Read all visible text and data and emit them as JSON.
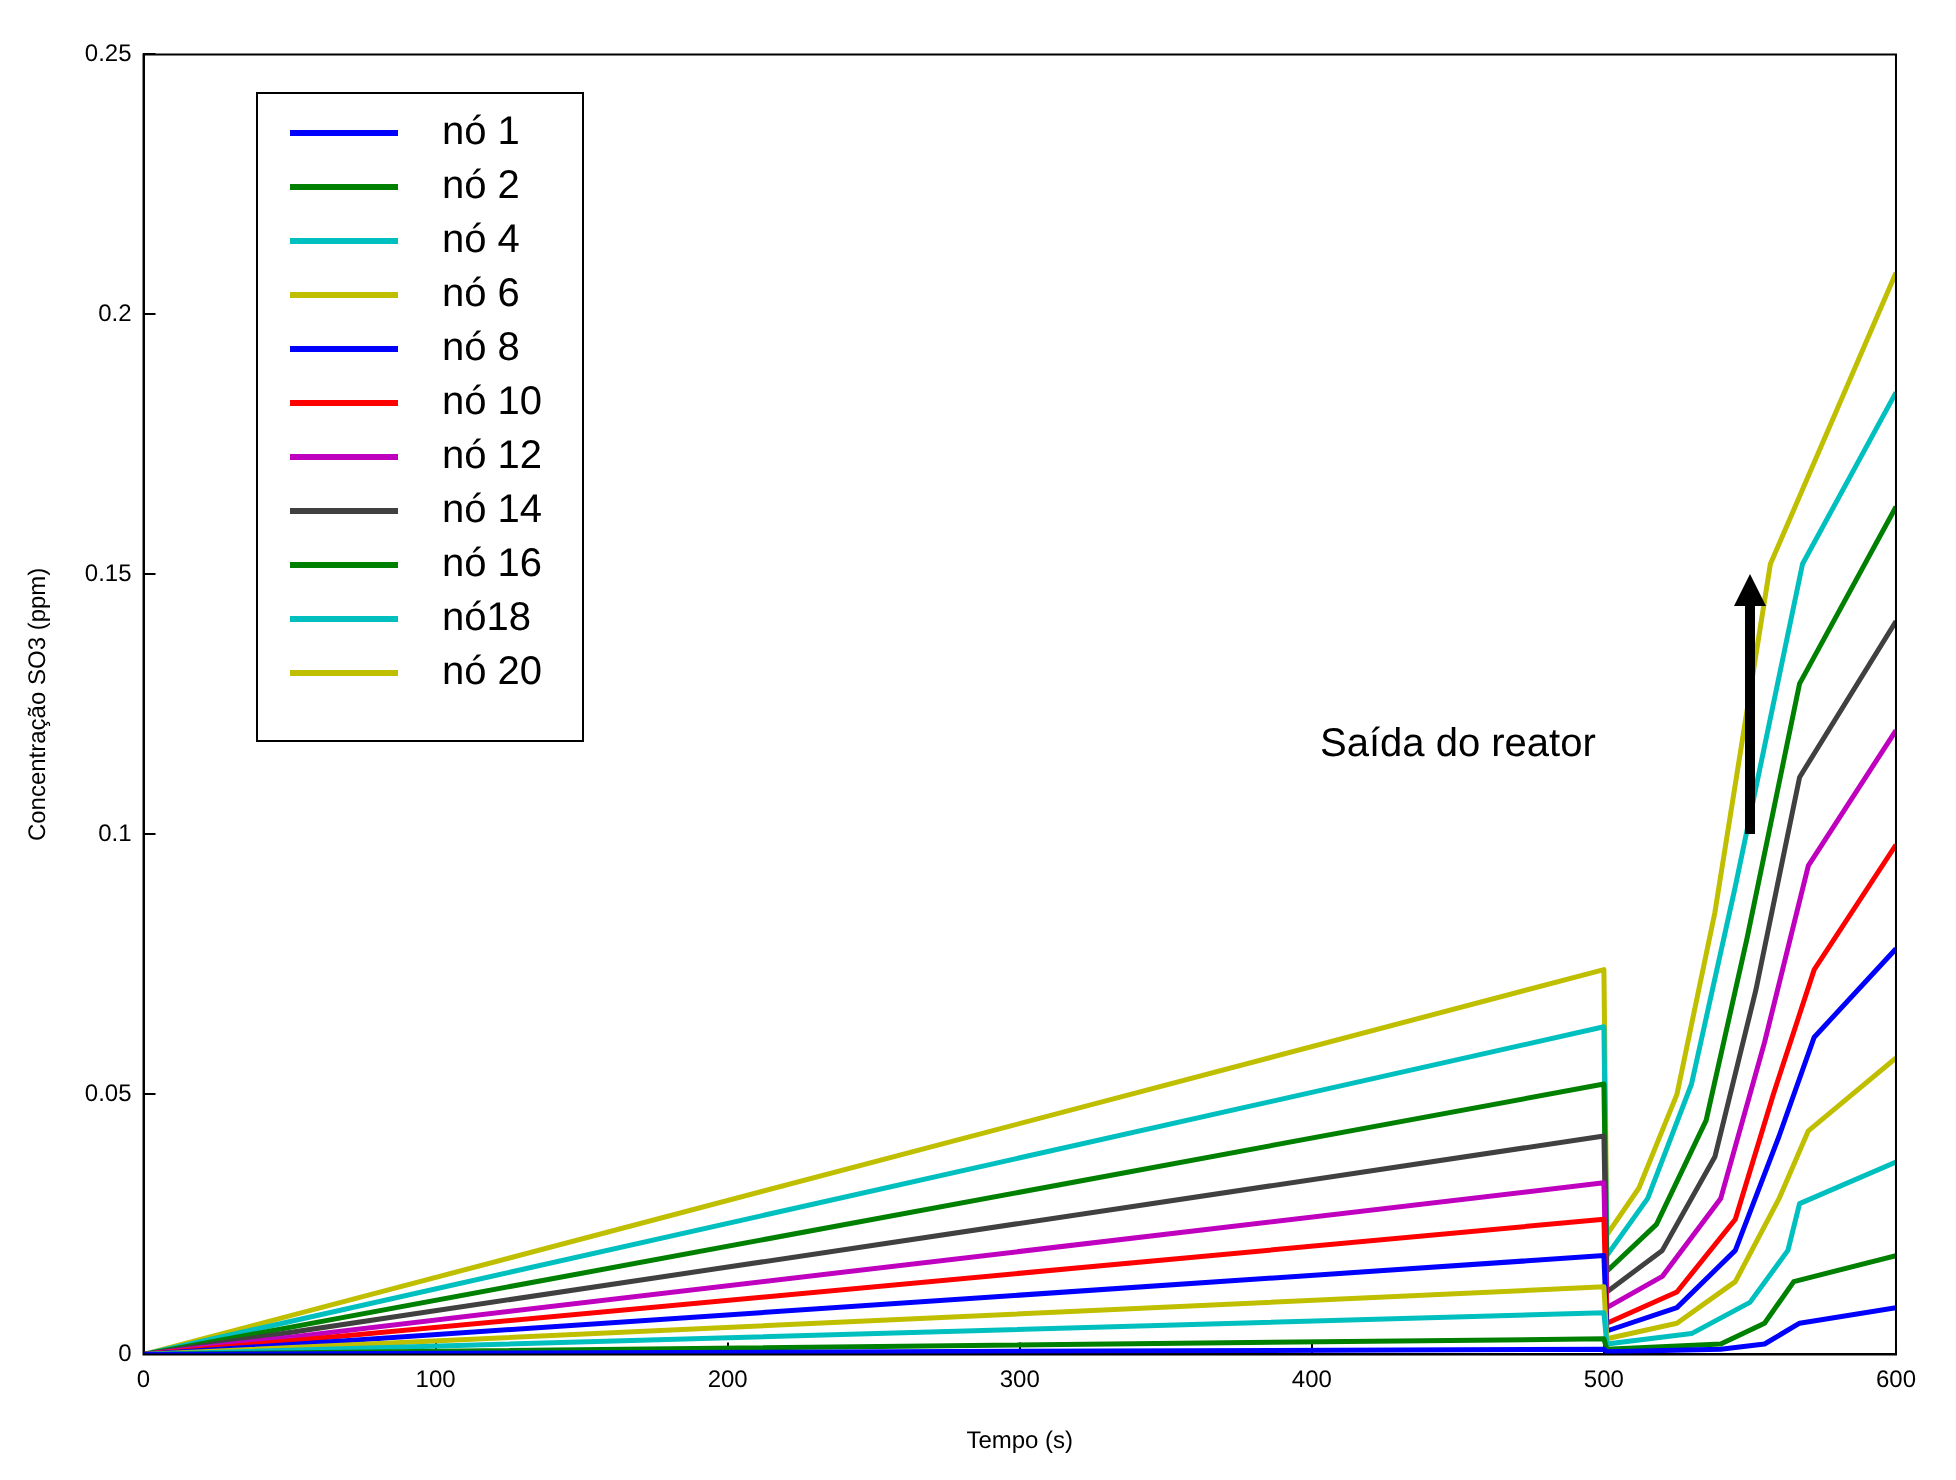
{
  "chart_data": {
    "type": "line",
    "xlabel": "Tempo (s)",
    "ylabel": "Concentração SO3 (ppm)",
    "xlim": [
      0,
      600
    ],
    "xticks": [
      0,
      100,
      200,
      300,
      400,
      500,
      600
    ],
    "ylim": [
      0,
      0.25
    ],
    "yticks": [
      0,
      0.05,
      0.1,
      0.15,
      0.2,
      0.25
    ],
    "grid": false,
    "legend": "top left",
    "marker": "none",
    "line_style": "solid",
    "annotations": [
      "Saída do reator"
    ],
    "series": [
      {
        "name": "nó 1",
        "color": "#0000ff",
        "x": [
          0,
          500,
          501,
          540,
          555,
          567,
          600
        ],
        "values": [
          0,
          0.001,
          0.0005,
          0.001,
          0.002,
          0.006,
          0.009
        ]
      },
      {
        "name": "nó 2",
        "color": "#008000",
        "x": [
          0,
          500,
          501,
          540,
          555,
          565,
          600
        ],
        "values": [
          0,
          0.003,
          0.001,
          0.002,
          0.006,
          0.014,
          0.019
        ]
      },
      {
        "name": "nó 4",
        "color": "#00bfbf",
        "x": [
          0,
          500,
          501,
          530,
          550,
          563,
          567,
          600
        ],
        "values": [
          0,
          0.008,
          0.002,
          0.004,
          0.01,
          0.02,
          0.029,
          0.037
        ]
      },
      {
        "name": "nó 6",
        "color": "#bfbf00",
        "x": [
          0,
          500,
          501,
          525,
          545,
          560,
          570,
          600
        ],
        "values": [
          0,
          0.013,
          0.003,
          0.006,
          0.014,
          0.03,
          0.043,
          0.057
        ]
      },
      {
        "name": "nó 8",
        "color": "#0000ff",
        "x": [
          0,
          500,
          501,
          525,
          545,
          560,
          572,
          600
        ],
        "values": [
          0,
          0.019,
          0.0045,
          0.009,
          0.02,
          0.042,
          0.061,
          0.078
        ]
      },
      {
        "name": "nó 10",
        "color": "#ff0000",
        "x": [
          0,
          500,
          501,
          525,
          545,
          558,
          572,
          600
        ],
        "values": [
          0,
          0.026,
          0.006,
          0.012,
          0.026,
          0.05,
          0.074,
          0.098
        ]
      },
      {
        "name": "nó 12",
        "color": "#bf00bf",
        "x": [
          0,
          500,
          501,
          520,
          540,
          555,
          570,
          600
        ],
        "values": [
          0,
          0.033,
          0.009,
          0.015,
          0.03,
          0.06,
          0.094,
          0.12
        ]
      },
      {
        "name": "nó 14",
        "color": "#404040",
        "x": [
          0,
          500,
          501,
          520,
          538,
          552,
          567,
          600
        ],
        "values": [
          0,
          0.042,
          0.012,
          0.02,
          0.038,
          0.07,
          0.111,
          0.141
        ]
      },
      {
        "name": "nó 16",
        "color": "#008000",
        "x": [
          0,
          500,
          501,
          518,
          535,
          549,
          567,
          600
        ],
        "values": [
          0,
          0.052,
          0.016,
          0.025,
          0.045,
          0.08,
          0.129,
          0.163
        ]
      },
      {
        "name": "nó18",
        "color": "#00bfbf",
        "x": [
          0,
          500,
          501,
          515,
          530,
          545,
          568,
          600
        ],
        "values": [
          0,
          0.063,
          0.019,
          0.03,
          0.052,
          0.09,
          0.152,
          0.185
        ]
      },
      {
        "name": "nó 20",
        "color": "#bfbf00",
        "x": [
          0,
          500,
          501,
          512,
          525,
          538,
          557,
          600
        ],
        "values": [
          0,
          0.074,
          0.023,
          0.032,
          0.05,
          0.085,
          0.152,
          0.208
        ]
      }
    ]
  }
}
